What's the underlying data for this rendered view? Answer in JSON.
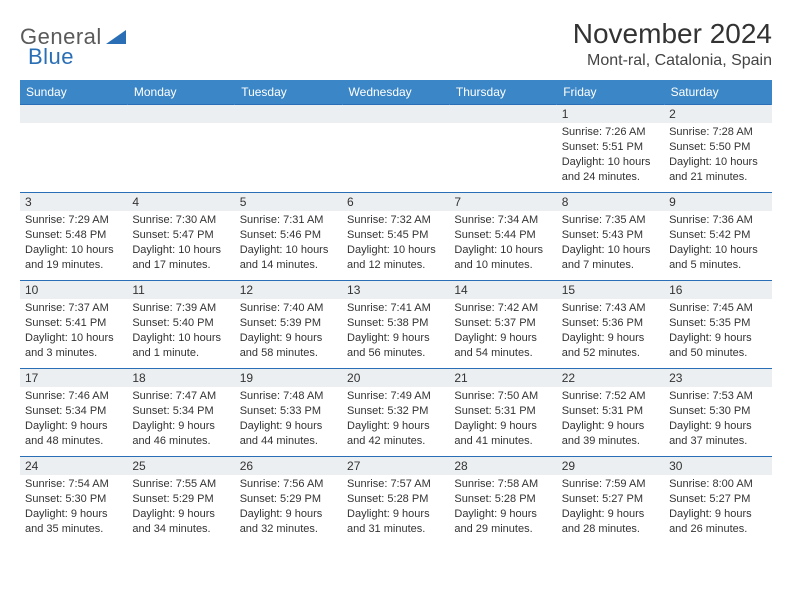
{
  "logo": {
    "part1": "General",
    "part2": "Blue"
  },
  "title": "November 2024",
  "location": "Mont-ral, Catalonia, Spain",
  "colors": {
    "header_bg": "#3b86c6",
    "header_text": "#ffffff",
    "row_divider": "#2a6fb5",
    "daynum_bg": "#eceff1",
    "body_text": "#333333",
    "logo_gray": "#5a5a5a",
    "logo_blue": "#2a6fb5"
  },
  "dayNames": [
    "Sunday",
    "Monday",
    "Tuesday",
    "Wednesday",
    "Thursday",
    "Friday",
    "Saturday"
  ],
  "weeks": [
    [
      null,
      null,
      null,
      null,
      null,
      {
        "d": "1",
        "sr": "7:26 AM",
        "ss": "5:51 PM",
        "dl": "10 hours and 24 minutes."
      },
      {
        "d": "2",
        "sr": "7:28 AM",
        "ss": "5:50 PM",
        "dl": "10 hours and 21 minutes."
      }
    ],
    [
      {
        "d": "3",
        "sr": "7:29 AM",
        "ss": "5:48 PM",
        "dl": "10 hours and 19 minutes."
      },
      {
        "d": "4",
        "sr": "7:30 AM",
        "ss": "5:47 PM",
        "dl": "10 hours and 17 minutes."
      },
      {
        "d": "5",
        "sr": "7:31 AM",
        "ss": "5:46 PM",
        "dl": "10 hours and 14 minutes."
      },
      {
        "d": "6",
        "sr": "7:32 AM",
        "ss": "5:45 PM",
        "dl": "10 hours and 12 minutes."
      },
      {
        "d": "7",
        "sr": "7:34 AM",
        "ss": "5:44 PM",
        "dl": "10 hours and 10 minutes."
      },
      {
        "d": "8",
        "sr": "7:35 AM",
        "ss": "5:43 PM",
        "dl": "10 hours and 7 minutes."
      },
      {
        "d": "9",
        "sr": "7:36 AM",
        "ss": "5:42 PM",
        "dl": "10 hours and 5 minutes."
      }
    ],
    [
      {
        "d": "10",
        "sr": "7:37 AM",
        "ss": "5:41 PM",
        "dl": "10 hours and 3 minutes."
      },
      {
        "d": "11",
        "sr": "7:39 AM",
        "ss": "5:40 PM",
        "dl": "10 hours and 1 minute."
      },
      {
        "d": "12",
        "sr": "7:40 AM",
        "ss": "5:39 PM",
        "dl": "9 hours and 58 minutes."
      },
      {
        "d": "13",
        "sr": "7:41 AM",
        "ss": "5:38 PM",
        "dl": "9 hours and 56 minutes."
      },
      {
        "d": "14",
        "sr": "7:42 AM",
        "ss": "5:37 PM",
        "dl": "9 hours and 54 minutes."
      },
      {
        "d": "15",
        "sr": "7:43 AM",
        "ss": "5:36 PM",
        "dl": "9 hours and 52 minutes."
      },
      {
        "d": "16",
        "sr": "7:45 AM",
        "ss": "5:35 PM",
        "dl": "9 hours and 50 minutes."
      }
    ],
    [
      {
        "d": "17",
        "sr": "7:46 AM",
        "ss": "5:34 PM",
        "dl": "9 hours and 48 minutes."
      },
      {
        "d": "18",
        "sr": "7:47 AM",
        "ss": "5:34 PM",
        "dl": "9 hours and 46 minutes."
      },
      {
        "d": "19",
        "sr": "7:48 AM",
        "ss": "5:33 PM",
        "dl": "9 hours and 44 minutes."
      },
      {
        "d": "20",
        "sr": "7:49 AM",
        "ss": "5:32 PM",
        "dl": "9 hours and 42 minutes."
      },
      {
        "d": "21",
        "sr": "7:50 AM",
        "ss": "5:31 PM",
        "dl": "9 hours and 41 minutes."
      },
      {
        "d": "22",
        "sr": "7:52 AM",
        "ss": "5:31 PM",
        "dl": "9 hours and 39 minutes."
      },
      {
        "d": "23",
        "sr": "7:53 AM",
        "ss": "5:30 PM",
        "dl": "9 hours and 37 minutes."
      }
    ],
    [
      {
        "d": "24",
        "sr": "7:54 AM",
        "ss": "5:30 PM",
        "dl": "9 hours and 35 minutes."
      },
      {
        "d": "25",
        "sr": "7:55 AM",
        "ss": "5:29 PM",
        "dl": "9 hours and 34 minutes."
      },
      {
        "d": "26",
        "sr": "7:56 AM",
        "ss": "5:29 PM",
        "dl": "9 hours and 32 minutes."
      },
      {
        "d": "27",
        "sr": "7:57 AM",
        "ss": "5:28 PM",
        "dl": "9 hours and 31 minutes."
      },
      {
        "d": "28",
        "sr": "7:58 AM",
        "ss": "5:28 PM",
        "dl": "9 hours and 29 minutes."
      },
      {
        "d": "29",
        "sr": "7:59 AM",
        "ss": "5:27 PM",
        "dl": "9 hours and 28 minutes."
      },
      {
        "d": "30",
        "sr": "8:00 AM",
        "ss": "5:27 PM",
        "dl": "9 hours and 26 minutes."
      }
    ]
  ],
  "labels": {
    "sunrise": "Sunrise: ",
    "sunset": "Sunset: ",
    "daylight": "Daylight: "
  }
}
